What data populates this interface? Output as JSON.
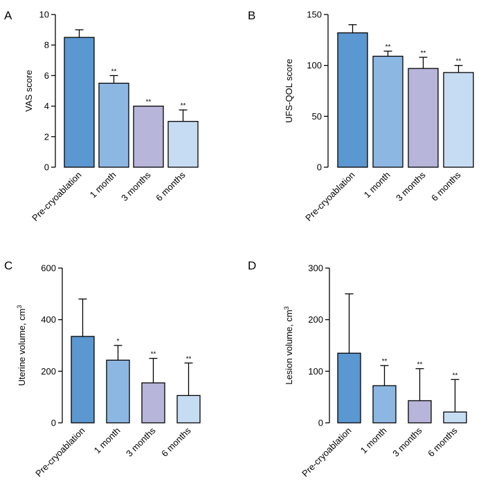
{
  "colors": {
    "bar_fills": [
      "#5b97d0",
      "#8db7e3",
      "#b8b5db",
      "#c6dcf3"
    ]
  },
  "chart_data": [
    {
      "type": "bar",
      "letter": "A",
      "title": "",
      "ylabel": "VAS score",
      "ylabel_sup": "",
      "categories": [
        "Pre-cryoablation",
        "1 month",
        "3 months",
        "6 months"
      ],
      "values": [
        8.5,
        5.5,
        4.0,
        3.0
      ],
      "error_upper": [
        9.0,
        6.0,
        4.0,
        3.75
      ],
      "significance": [
        "",
        "**",
        "**",
        "**"
      ],
      "ylim": [
        0,
        10
      ],
      "yticks": [
        0,
        2,
        4,
        6,
        8,
        10
      ]
    },
    {
      "type": "bar",
      "letter": "B",
      "title": "",
      "ylabel": "UFS-QOL score",
      "ylabel_sup": "",
      "categories": [
        "Pre-cryoablation",
        "1 month",
        "3 months",
        "6 months"
      ],
      "values": [
        132,
        109,
        97,
        93
      ],
      "error_upper": [
        140,
        114,
        108,
        100
      ],
      "significance": [
        "",
        "**",
        "**",
        "**"
      ],
      "ylim": [
        0,
        150
      ],
      "yticks": [
        0,
        50,
        100,
        150
      ]
    },
    {
      "type": "bar",
      "letter": "C",
      "title": "",
      "ylabel": "Uterine volume, cm",
      "ylabel_sup": "3",
      "categories": [
        "Pre-cryoablation",
        "1 month",
        "3 months",
        "6 months"
      ],
      "values": [
        335,
        243,
        155,
        106
      ],
      "error_upper": [
        480,
        300,
        250,
        232
      ],
      "significance": [
        "",
        "*",
        "**",
        "**"
      ],
      "ylim": [
        0,
        600
      ],
      "yticks": [
        0,
        200,
        400,
        600
      ]
    },
    {
      "type": "bar",
      "letter": "D",
      "title": "",
      "ylabel": "Lesion volume, cm",
      "ylabel_sup": "3",
      "categories": [
        "Pre-cryoablation",
        "1 month",
        "3 months",
        "6 months"
      ],
      "values": [
        135,
        72,
        43,
        21
      ],
      "error_upper": [
        250,
        111,
        105,
        84
      ],
      "significance": [
        "",
        "**",
        "**",
        "**"
      ],
      "ylim": [
        0,
        300
      ],
      "yticks": [
        0,
        100,
        200,
        300
      ]
    }
  ]
}
